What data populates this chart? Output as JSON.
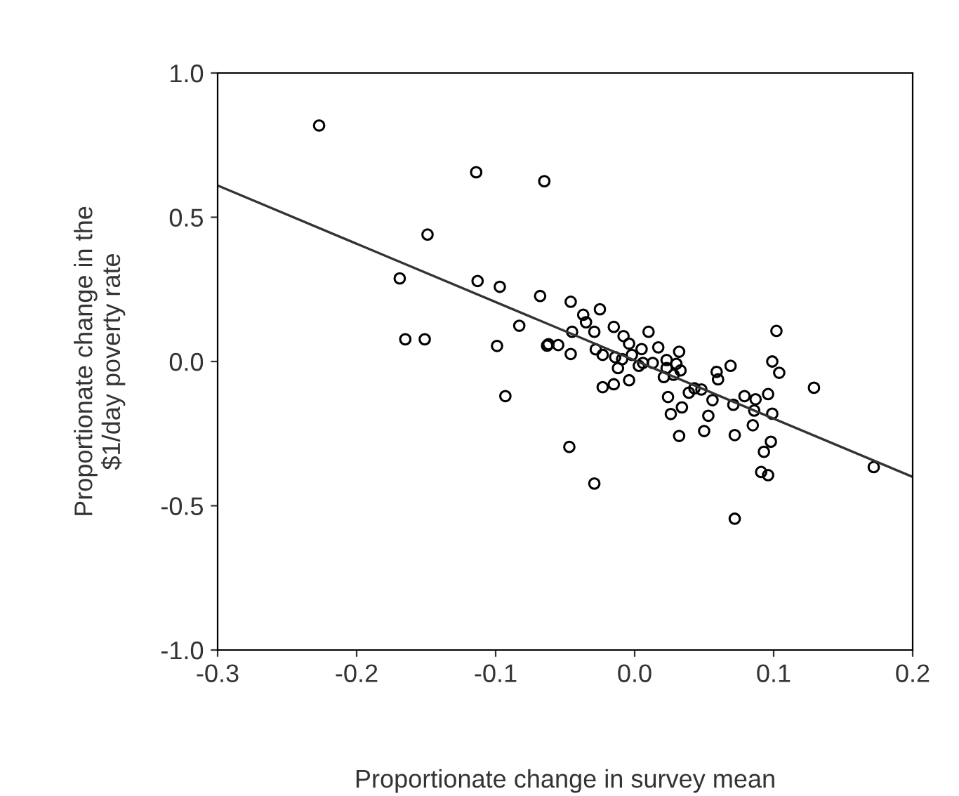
{
  "chart_data": {
    "type": "scatter",
    "xlabel": "Proportionate change in survey mean",
    "ylabel": "Proportionate change in the\n$1/day poverty rate",
    "xlim": [
      -0.3,
      0.2
    ],
    "xticks": [
      {
        "value": -0.3,
        "label": "-0.3"
      },
      {
        "value": -0.2,
        "label": "-0.2"
      },
      {
        "value": -0.1,
        "label": "-0.1"
      },
      {
        "value": 0.0,
        "label": "0.0"
      },
      {
        "value": 0.1,
        "label": "0.1"
      },
      {
        "value": 0.2,
        "label": "0.2"
      }
    ],
    "ylim": [
      -1.0,
      1.0
    ],
    "yticks": [
      {
        "value": -1.0,
        "label": "-1.0"
      },
      {
        "value": -0.5,
        "label": "-0.5"
      },
      {
        "value": 0.0,
        "label": "0.0"
      },
      {
        "value": 0.5,
        "label": "0.5"
      },
      {
        "value": 1.0,
        "label": "1.0"
      }
    ],
    "grid": false,
    "legend": false,
    "marker": "circle",
    "series": [
      {
        "color": "#000000",
        "x": [
          -0.227,
          -0.114,
          -0.065,
          -0.149,
          -0.169,
          -0.113,
          -0.097,
          -0.068,
          -0.165,
          -0.151,
          -0.083,
          -0.099,
          -0.063,
          -0.062,
          -0.055,
          -0.093,
          -0.046,
          -0.025,
          -0.037,
          -0.035,
          -0.029,
          -0.045,
          -0.015,
          0.01,
          -0.046,
          -0.028,
          -0.023,
          -0.008,
          -0.004,
          0.005,
          0.017,
          0.032,
          -0.014,
          -0.009,
          -0.002,
          0.006,
          0.013,
          0.023,
          0.03,
          0.023,
          0.033,
          0.021,
          0.028,
          0.003,
          -0.012,
          -0.004,
          -0.023,
          -0.015,
          -0.047,
          -0.029,
          0.024,
          0.034,
          0.026,
          0.032,
          0.053,
          0.05,
          0.072,
          0.072,
          0.059,
          0.069,
          0.06,
          0.043,
          0.048,
          0.039,
          0.056,
          0.071,
          0.079,
          0.087,
          0.096,
          0.086,
          0.099,
          0.085,
          0.098,
          0.093,
          0.091,
          0.096,
          0.102,
          0.099,
          0.104,
          0.129,
          0.172
        ],
        "values": [
          0.818,
          0.656,
          0.625,
          0.44,
          0.288,
          0.279,
          0.259,
          0.227,
          0.077,
          0.077,
          0.124,
          0.054,
          0.055,
          0.06,
          0.057,
          -0.12,
          0.207,
          0.181,
          0.162,
          0.136,
          0.103,
          0.103,
          0.12,
          0.103,
          0.026,
          0.042,
          0.023,
          0.088,
          0.062,
          0.043,
          0.049,
          0.034,
          0.015,
          0.008,
          0.023,
          -0.005,
          -0.005,
          0.005,
          -0.008,
          -0.023,
          -0.031,
          -0.054,
          -0.046,
          -0.015,
          -0.023,
          -0.065,
          -0.089,
          -0.079,
          -0.296,
          -0.423,
          -0.123,
          -0.159,
          -0.182,
          -0.258,
          -0.188,
          -0.241,
          -0.255,
          -0.545,
          -0.036,
          -0.015,
          -0.062,
          -0.093,
          -0.097,
          -0.108,
          -0.134,
          -0.15,
          -0.12,
          -0.131,
          -0.113,
          -0.17,
          -0.181,
          -0.221,
          -0.278,
          -0.313,
          -0.383,
          -0.394,
          0.106,
          0.0,
          -0.039,
          -0.091,
          -0.366
        ]
      },
      {
        "type": "line",
        "color": "#333333",
        "x": [
          -0.3,
          0.2
        ],
        "values": [
          0.61,
          -0.4
        ],
        "marker": "none",
        "line_style": "solid"
      }
    ]
  }
}
